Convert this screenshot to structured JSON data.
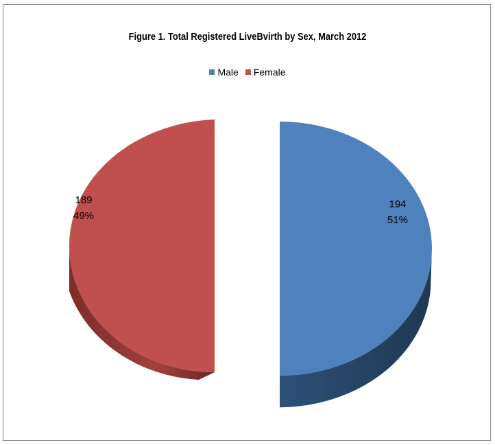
{
  "chart_data": {
    "type": "pie",
    "title": "Figure 1. Total Registered LiveBvirth by Sex, March 2012",
    "legend_position": "top",
    "categories": [
      "Male",
      "Female"
    ],
    "values": [
      194,
      189
    ],
    "percent_labels": [
      "51%",
      "49%"
    ],
    "colors": [
      "#4f81bd",
      "#c0504d"
    ],
    "side_colors": [
      "#2b4a6f",
      "#8a3331"
    ],
    "exploded": true,
    "three_d": true
  },
  "legend": {
    "male": "Male",
    "female": "Female"
  },
  "labels": {
    "male_value": "194",
    "male_pct": "51%",
    "female_value": "189",
    "female_pct": "49%"
  }
}
